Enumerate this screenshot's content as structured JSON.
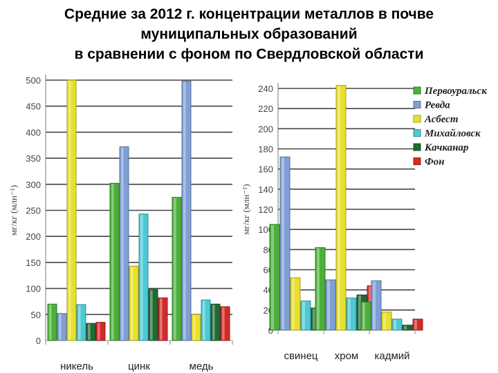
{
  "title": {
    "line1": "Средние за 2012 г. концентрации металлов в почве",
    "line2": "муниципальных образований",
    "line3": "в сравнении с фоном по Свердловской области"
  },
  "chart_data": [
    {
      "type": "bar",
      "categories": [
        "никель",
        "цинк",
        "медь"
      ],
      "ylabel": "мг/кг (млн⁻¹)",
      "ylim": [
        0,
        500
      ],
      "yticks": [
        "0",
        "50",
        "100",
        "150",
        "200",
        "250",
        "300",
        "350",
        "400",
        "450",
        "500"
      ],
      "grid": true,
      "series": [
        {
          "name": "Первоуральск",
          "color": "#4caf3a",
          "values": [
            70,
            302,
            275
          ]
        },
        {
          "name": "Ревда",
          "color": "#7f9fd6",
          "values": [
            52,
            372,
            498
          ]
        },
        {
          "name": "Асбест",
          "color": "#e8e02a",
          "values": [
            500,
            143,
            50
          ]
        },
        {
          "name": "Михайловск",
          "color": "#4dc8d6",
          "values": [
            69,
            243,
            78
          ]
        },
        {
          "name": "Качканар",
          "color": "#1e6b33",
          "values": [
            33,
            98,
            70
          ]
        },
        {
          "name": "Фон",
          "color": "#d42a2a",
          "values": [
            35,
            82,
            65
          ]
        }
      ]
    },
    {
      "type": "bar",
      "categories": [
        "свинец",
        "хром",
        "кадмий"
      ],
      "ylabel": "мг/кг (млн⁻¹)",
      "ylim": [
        0,
        240
      ],
      "yticks": [
        "0",
        "20",
        "40",
        "60",
        "80",
        "100",
        "120",
        "140",
        "160",
        "180",
        "200",
        "220",
        "240"
      ],
      "grid": true,
      "legend": "right",
      "series": [
        {
          "name": "Первоуральск",
          "color": "#4caf3a",
          "values": [
            105,
            82,
            28
          ]
        },
        {
          "name": "Ревда",
          "color": "#7f9fd6",
          "values": [
            172,
            50,
            49
          ]
        },
        {
          "name": "Асбест",
          "color": "#e8e02a",
          "values": [
            52,
            243,
            18
          ]
        },
        {
          "name": "Михайловск",
          "color": "#4dc8d6",
          "values": [
            29,
            32,
            11
          ]
        },
        {
          "name": "Качканар",
          "color": "#1e6b33",
          "values": [
            22,
            35,
            5
          ]
        },
        {
          "name": "Фон",
          "color": "#d42a2a",
          "values": [
            28,
            44,
            11
          ]
        }
      ]
    }
  ]
}
